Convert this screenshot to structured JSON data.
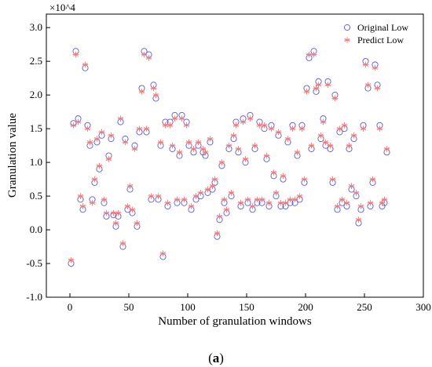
{
  "chart_data": {
    "type": "scatter",
    "xlabel": "Number of granulation windows",
    "ylabel": "Granulation value",
    "multiplier_label": "×10^4",
    "caption_prefix": "(",
    "caption_letter": "a",
    "caption_suffix": ")",
    "xlim": [
      -20,
      300
    ],
    "ylim": [
      -1.0,
      3.2
    ],
    "xticks": [
      0,
      50,
      100,
      150,
      200,
      250,
      300
    ],
    "yticks": [
      -1.0,
      -0.5,
      0.0,
      0.5,
      1.0,
      1.5,
      2.0,
      2.5,
      3.0
    ],
    "grid": false,
    "legend_position": "top-right",
    "colors": {
      "original": "#5a5ad6",
      "predict": "#f07a7a"
    },
    "series": [
      {
        "name": "Original Low",
        "marker": "circle",
        "x": [
          1,
          3,
          5,
          7,
          9,
          11,
          13,
          15,
          17,
          19,
          21,
          23,
          25,
          27,
          29,
          31,
          33,
          35,
          37,
          39,
          41,
          43,
          45,
          47,
          49,
          51,
          53,
          55,
          57,
          59,
          61,
          63,
          65,
          67,
          69,
          71,
          73,
          75,
          77,
          79,
          81,
          83,
          85,
          87,
          89,
          91,
          93,
          95,
          97,
          99,
          101,
          103,
          105,
          107,
          109,
          111,
          113,
          115,
          117,
          119,
          121,
          123,
          125,
          127,
          129,
          131,
          133,
          135,
          137,
          139,
          141,
          143,
          145,
          147,
          149,
          151,
          153,
          155,
          157,
          159,
          161,
          163,
          165,
          167,
          169,
          171,
          173,
          175,
          177,
          179,
          181,
          183,
          185,
          187,
          189,
          191,
          193,
          195,
          197,
          199,
          201,
          203,
          205,
          207,
          209,
          211,
          213,
          215,
          217,
          219,
          221,
          223,
          225,
          227,
          229,
          231,
          233,
          235,
          237,
          239,
          241,
          243,
          245,
          247,
          249,
          251,
          253,
          255,
          257,
          259,
          261,
          263,
          265,
          267,
          269
        ],
        "y": [
          -0.5,
          1.58,
          2.65,
          1.65,
          0.45,
          0.3,
          2.4,
          1.55,
          1.25,
          0.45,
          0.7,
          1.3,
          0.9,
          1.4,
          0.4,
          0.2,
          1.1,
          1.35,
          0.22,
          0.05,
          0.2,
          1.6,
          -0.25,
          1.35,
          0.3,
          0.6,
          0.25,
          1.25,
          0.05,
          1.45,
          2.1,
          2.65,
          1.45,
          2.6,
          0.45,
          2.15,
          1.95,
          0.45,
          1.25,
          -0.4,
          1.6,
          0.35,
          1.6,
          1.2,
          1.7,
          0.4,
          1.1,
          1.7,
          0.4,
          1.6,
          1.25,
          0.3,
          1.15,
          0.45,
          1.25,
          0.5,
          1.15,
          1.1,
          0.55,
          1.3,
          0.6,
          0.7,
          -0.1,
          0.15,
          0.95,
          0.4,
          0.25,
          1.2,
          0.5,
          1.35,
          1.6,
          1.15,
          0.35,
          1.65,
          1.0,
          0.4,
          1.7,
          0.3,
          1.2,
          0.4,
          1.6,
          0.4,
          1.5,
          1.05,
          0.35,
          1.55,
          0.8,
          0.5,
          1.4,
          0.35,
          0.75,
          0.35,
          1.3,
          0.4,
          1.55,
          0.4,
          1.1,
          0.45,
          1.55,
          0.7,
          2.1,
          2.55,
          1.2,
          2.65,
          2.05,
          2.2,
          1.35,
          1.65,
          1.25,
          2.2,
          1.2,
          0.7,
          2.0,
          0.3,
          1.45,
          0.4,
          1.5,
          0.35,
          1.2,
          0.6,
          1.35,
          0.5,
          0.1,
          0.3,
          1.55,
          2.5,
          2.1,
          0.35,
          0.7,
          2.45,
          2.15,
          1.55,
          0.35,
          0.4,
          1.15
        ],
        "y_extra": []
      },
      {
        "name": "Predict Low",
        "marker": "asterisk",
        "x": [
          1,
          3,
          5,
          7,
          9,
          11,
          13,
          15,
          17,
          19,
          21,
          23,
          25,
          27,
          29,
          31,
          33,
          35,
          37,
          39,
          41,
          43,
          45,
          47,
          49,
          51,
          53,
          55,
          57,
          59,
          61,
          63,
          65,
          67,
          69,
          71,
          73,
          75,
          77,
          79,
          81,
          83,
          85,
          87,
          89,
          91,
          93,
          95,
          97,
          99,
          101,
          103,
          105,
          107,
          109,
          111,
          113,
          115,
          117,
          119,
          121,
          123,
          125,
          127,
          129,
          131,
          133,
          135,
          137,
          139,
          141,
          143,
          145,
          147,
          149,
          151,
          153,
          155,
          157,
          159,
          161,
          163,
          165,
          167,
          169,
          171,
          173,
          175,
          177,
          179,
          181,
          183,
          185,
          187,
          189,
          191,
          193,
          195,
          197,
          199,
          201,
          203,
          205,
          207,
          209,
          211,
          213,
          215,
          217,
          219,
          221,
          223,
          225,
          227,
          229,
          231,
          233,
          235,
          237,
          239,
          241,
          243,
          245,
          247,
          249,
          251,
          253,
          255,
          257,
          259,
          261,
          263,
          265,
          267,
          269
        ],
        "y": [
          -0.45,
          1.55,
          2.6,
          1.6,
          0.5,
          0.35,
          2.45,
          1.5,
          1.3,
          0.4,
          0.75,
          1.35,
          0.95,
          1.45,
          0.45,
          0.25,
          1.05,
          1.4,
          0.25,
          0.1,
          0.25,
          1.65,
          -0.2,
          1.3,
          0.35,
          0.65,
          0.3,
          1.2,
          0.1,
          1.5,
          2.05,
          2.6,
          1.5,
          2.55,
          0.5,
          2.1,
          2.0,
          0.5,
          1.3,
          -0.35,
          1.55,
          0.4,
          1.55,
          1.25,
          1.65,
          0.45,
          1.15,
          1.65,
          0.45,
          1.55,
          1.3,
          0.35,
          1.2,
          0.5,
          1.3,
          0.55,
          1.2,
          1.15,
          0.6,
          1.35,
          0.65,
          0.75,
          -0.05,
          0.2,
          1.0,
          0.45,
          0.3,
          1.25,
          0.55,
          1.4,
          1.55,
          1.2,
          0.4,
          1.6,
          1.05,
          0.45,
          1.65,
          0.35,
          1.25,
          0.45,
          1.55,
          0.45,
          1.55,
          1.1,
          0.4,
          1.5,
          0.85,
          0.55,
          1.45,
          0.4,
          0.8,
          0.4,
          1.35,
          0.45,
          1.5,
          0.45,
          1.15,
          0.5,
          1.5,
          0.75,
          2.05,
          2.6,
          1.25,
          2.6,
          2.1,
          2.15,
          1.4,
          1.6,
          1.3,
          2.15,
          1.25,
          0.75,
          1.95,
          0.35,
          1.5,
          0.45,
          1.55,
          0.4,
          1.25,
          0.65,
          1.4,
          0.55,
          0.15,
          0.35,
          1.5,
          2.45,
          2.15,
          0.4,
          0.75,
          2.4,
          2.1,
          1.5,
          0.4,
          0.45,
          1.2
        ]
      }
    ]
  }
}
